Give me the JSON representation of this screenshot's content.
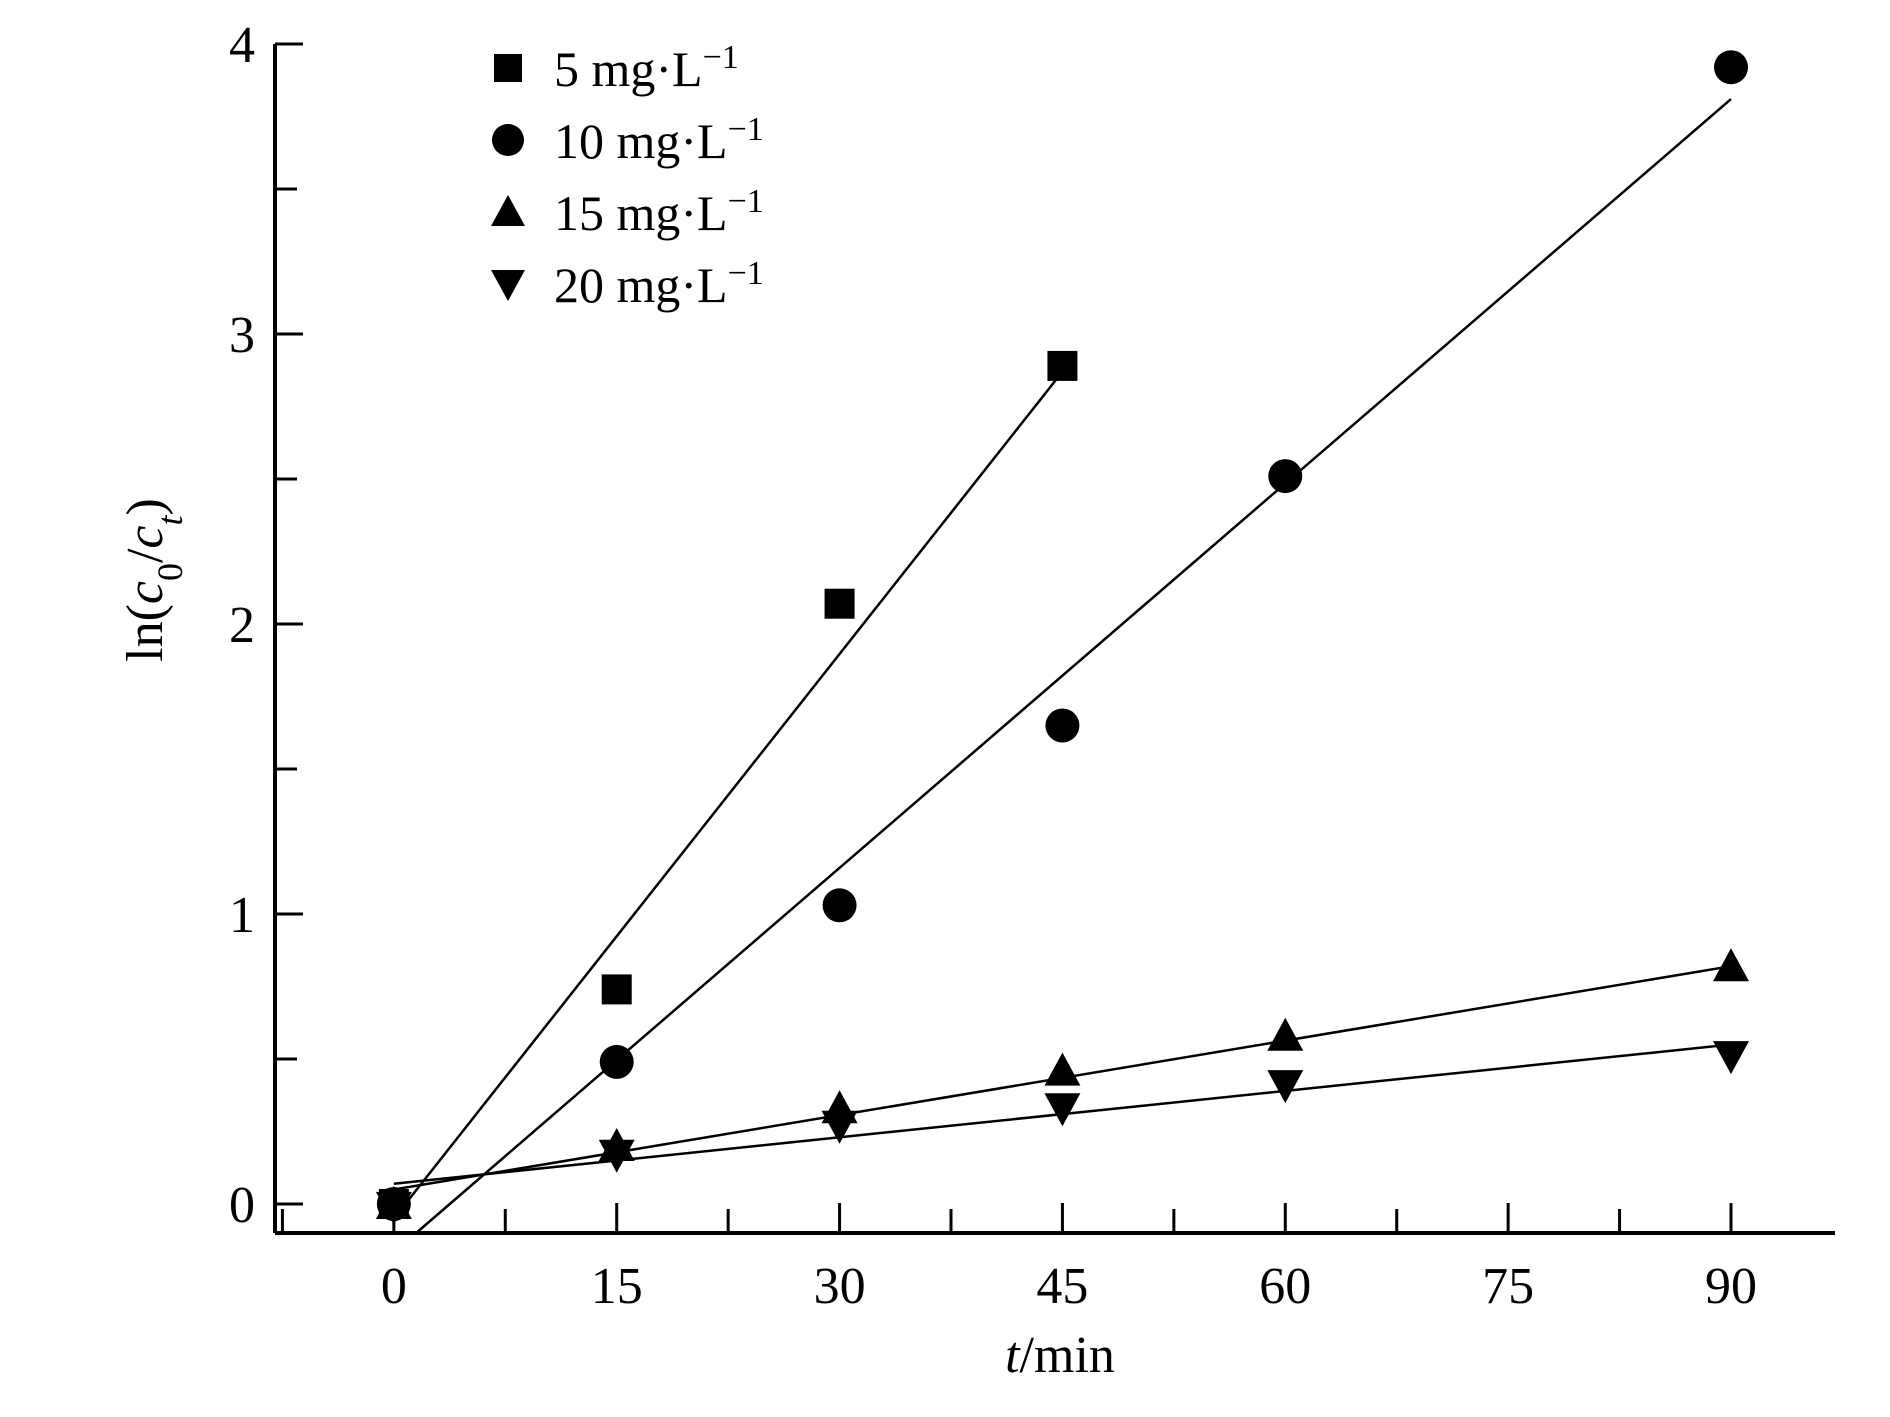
{
  "chart_data": {
    "type": "scatter",
    "title": "",
    "xlabel_var": "t",
    "xlabel_unit": "/min",
    "ylabel_pre": "ln(",
    "ylabel_c0": "c",
    "ylabel_sub0": "0",
    "ylabel_slash": "/",
    "ylabel_ct": "c",
    "ylabel_subt": "t",
    "ylabel_post": ")",
    "xlim": [
      -8,
      97
    ],
    "ylim": [
      -0.1,
      4
    ],
    "x_ticks": [
      0,
      15,
      30,
      45,
      60,
      75,
      90
    ],
    "x_tick_labels": [
      "0",
      "15",
      "30",
      "45",
      "60",
      "75",
      "90"
    ],
    "y_ticks": [
      0,
      1,
      2,
      3,
      4
    ],
    "y_tick_labels": [
      "0",
      "1",
      "2",
      "3",
      "4"
    ],
    "legend_position": "top-left",
    "series": [
      {
        "name": "5 mg·L",
        "sup": "−1",
        "marker": "square",
        "x": [
          0,
          15,
          30,
          45
        ],
        "y": [
          0,
          0.74,
          2.07,
          2.89
        ],
        "fit": [
          [
            0,
            -0.05
          ],
          [
            45,
            2.87
          ]
        ]
      },
      {
        "name": "10 mg·L",
        "sup": "−1",
        "marker": "circle",
        "x": [
          0,
          15,
          30,
          45,
          60,
          90
        ],
        "y": [
          0,
          0.49,
          1.03,
          1.65,
          2.51,
          3.92
        ],
        "fit": [
          [
            1.5,
            -0.1
          ],
          [
            90,
            3.81
          ]
        ]
      },
      {
        "name": "15 mg·L",
        "sup": "−1",
        "marker": "triangle-up",
        "x": [
          0,
          15,
          30,
          45,
          60,
          90
        ],
        "y": [
          0,
          0.2,
          0.33,
          0.46,
          0.58,
          0.82
        ],
        "fit": [
          [
            0,
            0.05
          ],
          [
            90,
            0.82
          ]
        ]
      },
      {
        "name": "20 mg·L",
        "sup": "−1",
        "marker": "triangle-down",
        "x": [
          0,
          15,
          30,
          45,
          60,
          90
        ],
        "y": [
          -0.01,
          0.17,
          0.27,
          0.33,
          0.41,
          0.51
        ],
        "fit": [
          [
            0,
            0.07
          ],
          [
            90,
            0.55
          ]
        ]
      }
    ]
  }
}
